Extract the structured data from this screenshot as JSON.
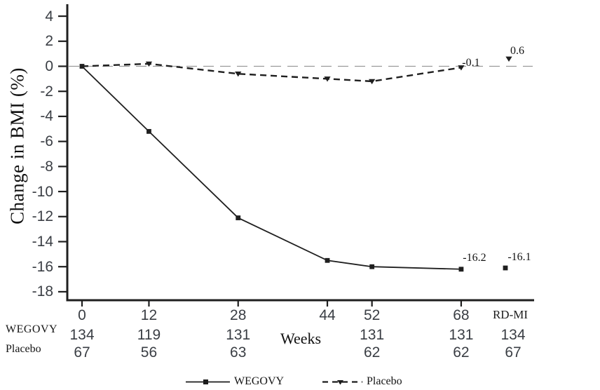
{
  "chart_data": {
    "type": "line",
    "title": "",
    "ylabel": "Change in BMI (%)",
    "xlabel": "Weeks",
    "x_tick_labels": [
      "0",
      "12",
      "28",
      "44",
      "52",
      "68",
      "RD-MI"
    ],
    "x_weeks": [
      0,
      12,
      28,
      44,
      52,
      68,
      null
    ],
    "ytick_values": [
      4,
      2,
      0,
      -2,
      -4,
      -6,
      -8,
      -10,
      -12,
      -14,
      -16,
      -18
    ],
    "ytick_labels": [
      "4",
      "2",
      "0",
      "-2",
      "-4",
      "-6",
      "-8",
      "-10",
      "-12",
      "-14",
      "-16",
      "-18"
    ],
    "ylim": [
      -18,
      4
    ],
    "grid": false,
    "reference_line": {
      "y": 0,
      "style": "dashed",
      "color": "#9a9a9a"
    },
    "line_color": "#1f1f1f",
    "series": [
      {
        "name": "WEGOVY",
        "line": "solid",
        "marker": "square",
        "x": [
          0,
          12,
          28,
          44,
          52,
          68
        ],
        "values": [
          0,
          -5.2,
          -12.1,
          -15.5,
          -16.0,
          -16.2
        ],
        "end_label": "-16.2",
        "rdmi_point": {
          "x_label": "RD-MI",
          "value": -16.1,
          "label": "-16.1"
        }
      },
      {
        "name": "Placebo",
        "line": "dashed",
        "marker": "triangle-down",
        "x": [
          0,
          12,
          28,
          44,
          52,
          68
        ],
        "values": [
          0,
          0.2,
          -0.6,
          -1.0,
          -1.2,
          -0.1
        ],
        "end_label": "-0.1",
        "rdmi_point": {
          "x_label": "RD-MI",
          "value": 0.6,
          "label": "0.6"
        }
      }
    ],
    "legend": {
      "position": "bottom",
      "entries": [
        "WEGOVY",
        "Placebo"
      ]
    },
    "n_table": {
      "rows": [
        {
          "label": "WEGOVY",
          "values": [
            "134",
            "119",
            "131",
            "",
            "131",
            "131",
            "134"
          ]
        },
        {
          "label": "Placebo",
          "values": [
            "67",
            "56",
            "63",
            "",
            "62",
            "62",
            "67"
          ]
        }
      ]
    }
  }
}
